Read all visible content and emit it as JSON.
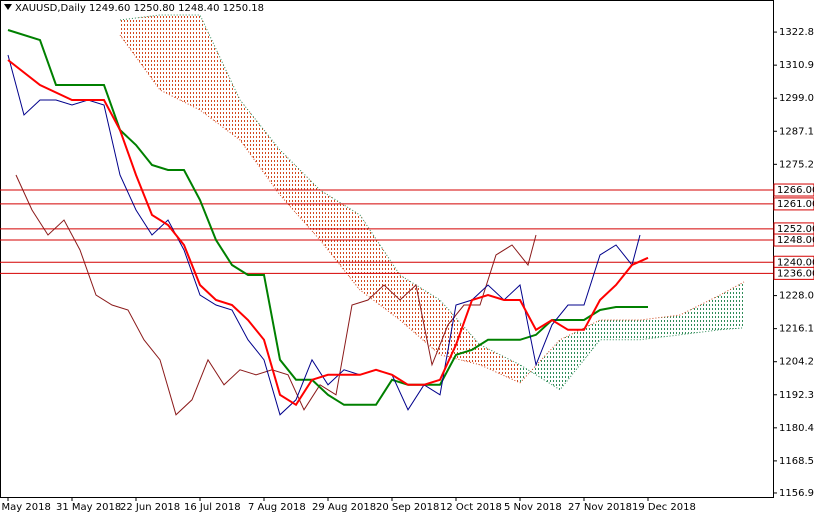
{
  "chart_data": {
    "type": "line",
    "title": "XAUUSD,Daily  1249.60 1250.80 1248.40 1250.18",
    "xlim": [
      -2,
      191.25
    ],
    "ylim": [
      1155.5,
      1334.4
    ],
    "xticks": [
      {
        "value": 0,
        "label": "9 May 2018"
      },
      {
        "value": 16,
        "label": "31 May 2018"
      },
      {
        "value": 32,
        "label": "22 Jun 2018"
      },
      {
        "value": 48,
        "label": "16 Jul 2018"
      },
      {
        "value": 64,
        "label": "7 Aug 2018"
      },
      {
        "value": 80,
        "label": "29 Aug 2018"
      },
      {
        "value": 96,
        "label": "20 Sep 2018"
      },
      {
        "value": 112,
        "label": "12 Oct 2018"
      },
      {
        "value": 128,
        "label": "5 Nov 2018"
      },
      {
        "value": 144,
        "label": "27 Nov 2018"
      },
      {
        "value": 160,
        "label": "19 Dec 2018"
      }
    ],
    "yticks": [
      1322.85,
      1310.95,
      1299.05,
      1287.15,
      1275.25,
      {
        "value": 1228,
        "label": "1228.00"
      },
      {
        "value": 1216.1,
        "label": "1216.10"
      },
      {
        "value": 1204.2,
        "label": "1204.20"
      },
      {
        "value": 1192.3,
        "label": "1192.30"
      },
      {
        "value": 1180.4,
        "label": "1180.40"
      },
      {
        "value": 1168.5,
        "label": "1168.50"
      },
      1156.95
    ],
    "levels": [
      {
        "value": 1266,
        "label": "1266.00"
      },
      {
        "value": 1261,
        "label": "1261.00"
      },
      {
        "value": 1252,
        "label": "1252.00"
      },
      {
        "value": 1248,
        "label": "1248.00"
      },
      {
        "value": 1240,
        "label": "1240.00"
      },
      {
        "value": 1236,
        "label": "1236.00"
      }
    ],
    "level_color": "#d40000",
    "cloud": {
      "x": [
        28,
        38,
        48,
        58,
        68,
        78,
        88,
        98,
        108,
        118,
        128,
        138,
        148,
        158,
        168,
        178,
        184
      ],
      "span_a": [
        1321.8,
        1302.0,
        1294.8,
        1284.0,
        1264.2,
        1248.0,
        1230.0,
        1219.2,
        1206.7,
        1203.1,
        1196.6,
        1212.1,
        1219.2,
        1219.2,
        1221.0,
        1228.2,
        1232.9
      ],
      "span_b": [
        1327.2,
        1329.0,
        1329.0,
        1298.4,
        1280.4,
        1266.0,
        1257.0,
        1235.4,
        1226.4,
        1210.3,
        1203.1,
        1194.1,
        1212.1,
        1212.1,
        1213.9,
        1215.7,
        1216.4
      ],
      "bear_color": "#d2491f",
      "bull_color": "#2e8b57"
    },
    "series": [
      {
        "color": "#8b1a1a",
        "x": [
          2,
          6,
          10,
          14,
          18,
          22,
          26,
          30,
          34,
          38,
          42,
          46,
          50,
          54,
          58,
          62,
          66,
          70,
          74,
          78,
          82,
          86,
          90,
          94,
          98,
          102,
          106,
          110,
          114,
          118,
          122,
          126,
          130,
          132
        ],
        "values": [
          1271.4,
          1258.8,
          1249.8,
          1255.2,
          1244.4,
          1228.2,
          1224.6,
          1222.8,
          1212.1,
          1204.9,
          1185.1,
          1190.5,
          1204.9,
          1195.9,
          1201.3,
          1199.5,
          1201.3,
          1199.5,
          1186.9,
          1195.9,
          1192.3,
          1224.6,
          1226.4,
          1231.8,
          1226.4,
          1231.8,
          1203.1,
          1217.5,
          1224.6,
          1224.6,
          1242.6,
          1246.2,
          1239.0,
          1249.8
        ]
      },
      {
        "color": "#008000",
        "x": [
          0,
          8,
          12,
          20,
          24,
          28,
          32,
          36,
          40,
          44,
          48,
          52,
          56,
          60,
          64,
          68,
          72,
          76,
          80,
          84,
          88,
          92,
          96,
          100,
          104,
          108,
          112,
          116,
          120,
          124,
          128,
          132,
          136,
          140,
          144,
          148,
          152,
          156,
          160
        ],
        "values": [
          1323.6,
          1320.0,
          1303.8,
          1303.8,
          1303.8,
          1287.6,
          1282.2,
          1275.0,
          1273.2,
          1273.2,
          1262.4,
          1248.0,
          1239.0,
          1235.4,
          1235.4,
          1204.9,
          1197.7,
          1197.7,
          1192.3,
          1188.7,
          1188.7,
          1188.7,
          1197.7,
          1195.9,
          1195.9,
          1195.9,
          1206.7,
          1208.5,
          1212.1,
          1212.1,
          1212.1,
          1213.9,
          1219.2,
          1219.2,
          1219.2,
          1222.8,
          1223.9,
          1223.9,
          1223.9
        ]
      },
      {
        "color": "#00008b",
        "x": [
          0,
          4,
          8,
          12,
          16,
          20,
          24,
          28,
          32,
          36,
          40,
          44,
          48,
          52,
          56,
          60,
          64,
          68,
          72,
          76,
          80,
          84,
          88,
          92,
          96,
          100,
          104,
          108,
          112,
          116,
          120,
          124,
          128,
          132,
          136,
          140,
          144,
          148,
          152,
          156,
          158
        ],
        "values": [
          1314.6,
          1293.0,
          1298.4,
          1298.4,
          1296.6,
          1298.4,
          1296.6,
          1271.4,
          1258.8,
          1249.8,
          1255.2,
          1244.4,
          1228.2,
          1224.6,
          1222.8,
          1212.1,
          1204.9,
          1185.1,
          1190.5,
          1204.9,
          1195.9,
          1201.3,
          1199.5,
          1201.3,
          1199.5,
          1186.9,
          1195.9,
          1192.3,
          1224.6,
          1226.4,
          1231.8,
          1226.4,
          1231.8,
          1203.1,
          1217.5,
          1224.6,
          1224.6,
          1242.6,
          1246.2,
          1239.0,
          1249.8
        ]
      },
      {
        "color": "#ff0000",
        "x": [
          0,
          8,
          16,
          24,
          28,
          32,
          36,
          40,
          44,
          48,
          52,
          56,
          60,
          64,
          68,
          72,
          76,
          80,
          84,
          88,
          92,
          96,
          100,
          104,
          108,
          112,
          116,
          120,
          124,
          128,
          132,
          136,
          140,
          144,
          148,
          152,
          156,
          160
        ],
        "values": [
          1312.8,
          1303.8,
          1298.4,
          1298.4,
          1287.6,
          1271.4,
          1257.0,
          1253.4,
          1246.2,
          1231.8,
          1226.4,
          1224.6,
          1219.2,
          1212.1,
          1192.3,
          1188.7,
          1197.7,
          1199.5,
          1199.5,
          1199.5,
          1201.3,
          1199.5,
          1195.9,
          1195.9,
          1197.7,
          1210.3,
          1226.4,
          1228.2,
          1226.4,
          1226.4,
          1215.7,
          1219.2,
          1215.7,
          1215.7,
          1226.4,
          1231.8,
          1239.0,
          1241.6
        ]
      }
    ]
  }
}
